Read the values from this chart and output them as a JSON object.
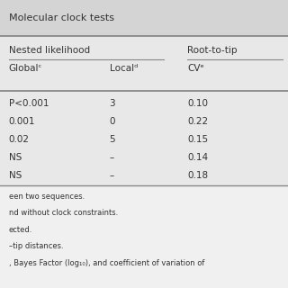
{
  "title": "Molecular clock tests",
  "header1": "Nested likelihood",
  "header2": "Root-to-tip",
  "col_headers": [
    "Globalᶜ",
    "Localᵈ",
    "CVᵉ"
  ],
  "rows": [
    [
      "P<0.001",
      "3",
      "0.10"
    ],
    [
      "0.001",
      "0",
      "0.22"
    ],
    [
      "0.02",
      "5",
      "0.15"
    ],
    [
      "NS",
      "–",
      "0.14"
    ],
    [
      "NS",
      "–",
      "0.18"
    ]
  ],
  "footnotes": [
    "een two sequences.",
    "nd without clock constraints.",
    "ected.",
    "–tip distances.",
    ", Bayes Factor (log₁₀), and coefficient of variation of"
  ],
  "title_bg": "#d4d4d4",
  "table_bg": "#e8e8e8",
  "fn_bg": "#f0f0f0",
  "line_color": "#888888",
  "text_color": "#333333"
}
